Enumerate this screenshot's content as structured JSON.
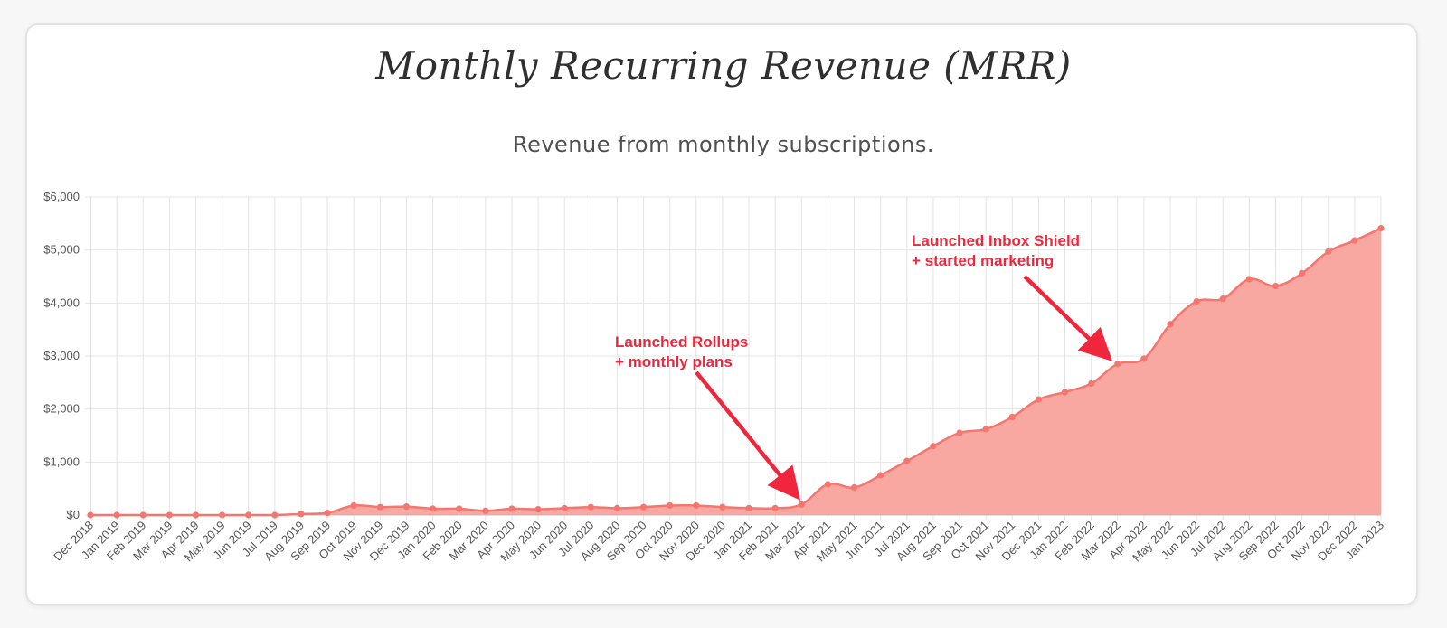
{
  "chart_data": {
    "type": "area",
    "title": "Monthly Recurring Revenue (MRR)",
    "subtitle": "Revenue from monthly subscriptions.",
    "xlabel": "",
    "ylabel": "",
    "ylim": [
      0,
      6000
    ],
    "y_ticks": [
      "$0",
      "$1,000",
      "$2,000",
      "$3,000",
      "$4,000",
      "$5,000",
      "$6,000"
    ],
    "y_tick_values": [
      0,
      1000,
      2000,
      3000,
      4000,
      5000,
      6000
    ],
    "grid": true,
    "legend": "none",
    "color": "#f4766f",
    "fill_color": "#f8a39b",
    "categories": [
      "Dec 2018",
      "Jan 2019",
      "Feb 2019",
      "Mar 2019",
      "Apr 2019",
      "May 2019",
      "Jun 2019",
      "Jul 2019",
      "Aug 2019",
      "Sep 2019",
      "Oct 2019",
      "Nov 2019",
      "Dec 2019",
      "Jan 2020",
      "Feb 2020",
      "Mar 2020",
      "Apr 2020",
      "May 2020",
      "Jun 2020",
      "Jul 2020",
      "Aug 2020",
      "Sep 2020",
      "Oct 2020",
      "Nov 2020",
      "Dec 2020",
      "Jan 2021",
      "Feb 2021",
      "Mar 2021",
      "Apr 2021",
      "May 2021",
      "Jun 2021",
      "Jul 2021",
      "Aug 2021",
      "Sep 2021",
      "Oct 2021",
      "Nov 2021",
      "Dec 2021",
      "Jan 2022",
      "Feb 2022",
      "Mar 2022",
      "Apr 2022",
      "May 2022",
      "Jun 2022",
      "Jul 2022",
      "Aug 2022",
      "Sep 2022",
      "Oct 2022",
      "Nov 2022",
      "Dec 2022",
      "Jan 2023"
    ],
    "series": [
      {
        "values": [
          0,
          0,
          0,
          0,
          0,
          0,
          0,
          0,
          20,
          40,
          180,
          150,
          160,
          120,
          120,
          80,
          120,
          110,
          130,
          150,
          130,
          150,
          180,
          180,
          150,
          130,
          130,
          200,
          580,
          520,
          750,
          1020,
          1300,
          1550,
          1620,
          1850,
          2180,
          2320,
          2480,
          2850,
          2950,
          3600,
          4030,
          4080,
          4450,
          4320,
          4560,
          4970,
          5180,
          5410
        ]
      }
    ],
    "annotations": [
      {
        "lines": [
          "Launched Rollups",
          "+ monthly plans"
        ],
        "target_category": "Mar 2021",
        "target_value": 200
      },
      {
        "lines": [
          "Launched Inbox Shield",
          "+ started marketing"
        ],
        "target_category": "Mar 2022",
        "target_value": 2850
      }
    ],
    "annotation_color": "#f0263c"
  }
}
